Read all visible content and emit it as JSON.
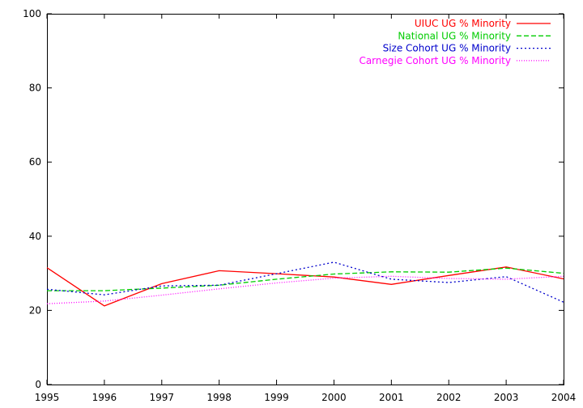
{
  "chart_data": {
    "type": "line",
    "title": "",
    "xlabel": "",
    "ylabel": "",
    "x": [
      1995,
      1996,
      1997,
      1998,
      1999,
      2000,
      2001,
      2002,
      2003,
      2004
    ],
    "xlim": [
      1995,
      2004
    ],
    "ylim": [
      0,
      100
    ],
    "xticks": [
      "1995",
      "1996",
      "1997",
      "1998",
      "1999",
      "2000",
      "2001",
      "2002",
      "2003",
      "2004"
    ],
    "yticks": [
      "0",
      "20",
      "40",
      "60",
      "80",
      "100"
    ],
    "grid": false,
    "legend_position": "top-right",
    "series": [
      {
        "name": "UIUC UG % Minority",
        "color": "#ff0000",
        "dash": "solid",
        "values": [
          31.5,
          21.2,
          27.2,
          30.7,
          29.9,
          29.0,
          27.0,
          29.4,
          31.7,
          28.5
        ]
      },
      {
        "name": "National UG % Minority",
        "color": "#00cc00",
        "dash": "dashed",
        "values": [
          25.3,
          25.3,
          26.0,
          26.8,
          28.4,
          29.8,
          30.4,
          30.3,
          31.4,
          30.0
        ]
      },
      {
        "name": "Size Cohort UG % Minority",
        "color": "#0000cc",
        "dash": "dotted",
        "values": [
          25.7,
          24.2,
          26.6,
          26.8,
          29.9,
          33.0,
          28.4,
          27.5,
          29.1,
          22.2
        ]
      },
      {
        "name": "Carnegie Cohort UG % Minority",
        "color": "#ff00ff",
        "dash": "fine",
        "values": [
          21.8,
          22.5,
          24.1,
          25.8,
          27.4,
          28.7,
          29.2,
          28.6,
          28.4,
          29.2
        ]
      }
    ]
  }
}
